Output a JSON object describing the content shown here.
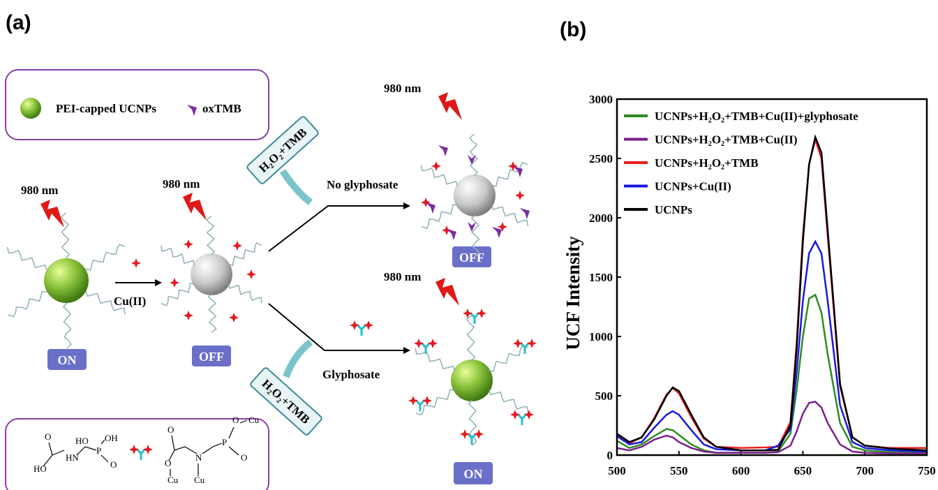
{
  "diagram": {
    "panel_label": "(a)",
    "legend": {
      "ucnp": "PEI-capped UCNPs",
      "oxtmb": "oxTMB"
    },
    "laser_labels": [
      "980 nm",
      "980 nm",
      "980 nm",
      "980 nm"
    ],
    "arrow_cu": "Cu(II)",
    "states": [
      "ON",
      "OFF",
      "OFF",
      "ON"
    ],
    "reagents": [
      "H₂O₂+TMB",
      "H₂O₂+TMB"
    ],
    "branches": [
      "No glyphosate",
      "Glyphosate"
    ],
    "structure_atoms": [
      "O",
      "HO",
      "HN",
      "HO",
      "P",
      "OH",
      "O",
      "O",
      "O",
      "Cu",
      "N",
      "Cu",
      "P",
      "O",
      "Cu",
      "O"
    ]
  },
  "chart_data": {
    "type": "line",
    "panel_label": "(b)",
    "ylabel": "UCF Intensity",
    "x": [
      500,
      510,
      520,
      530,
      540,
      545,
      550,
      560,
      570,
      580,
      600,
      620,
      630,
      640,
      645,
      650,
      655,
      660,
      665,
      670,
      680,
      690,
      700,
      720,
      750
    ],
    "series": [
      {
        "name": "UCNPs+H₂O₂+TMB+Cu(II)+glyphosate",
        "color": "#2e8b22",
        "values": [
          120,
          60,
          90,
          160,
          220,
          210,
          170,
          90,
          40,
          20,
          20,
          20,
          30,
          180,
          550,
          1000,
          1320,
          1350,
          1200,
          850,
          270,
          70,
          40,
          25,
          20
        ]
      },
      {
        "name": "UCNPs+H₂O₂+TMB+Cu(II)",
        "color": "#7b1f8c",
        "values": [
          60,
          40,
          70,
          130,
          165,
          150,
          110,
          60,
          30,
          20,
          20,
          20,
          25,
          80,
          200,
          350,
          440,
          450,
          400,
          270,
          90,
          30,
          20,
          15,
          15
        ]
      },
      {
        "name": "UCNPs+H₂O₂+TMB",
        "color": "#e52020",
        "values": [
          170,
          100,
          150,
          310,
          510,
          565,
          520,
          320,
          140,
          70,
          60,
          65,
          70,
          280,
          950,
          1850,
          2450,
          2660,
          2500,
          1850,
          580,
          150,
          80,
          60,
          60
        ]
      },
      {
        "name": "UCNPs+Cu(II)",
        "color": "#1818e0",
        "values": [
          160,
          90,
          110,
          230,
          340,
          370,
          340,
          210,
          90,
          50,
          40,
          40,
          80,
          220,
          700,
          1300,
          1700,
          1800,
          1700,
          1300,
          420,
          110,
          60,
          40,
          30
        ]
      },
      {
        "name": "UCNPs",
        "color": "#000000",
        "values": [
          180,
          110,
          150,
          300,
          500,
          570,
          540,
          340,
          150,
          70,
          40,
          40,
          45,
          250,
          900,
          1800,
          2450,
          2680,
          2550,
          1900,
          600,
          150,
          80,
          55,
          40
        ]
      }
    ],
    "xlim": [
      500,
      750
    ],
    "xticks": [
      500,
      550,
      600,
      650,
      700,
      750
    ],
    "ylim": [
      0,
      3000
    ],
    "yticks": [
      0,
      500,
      1000,
      1500,
      2000,
      2500,
      3000
    ],
    "legend": "upper left"
  }
}
